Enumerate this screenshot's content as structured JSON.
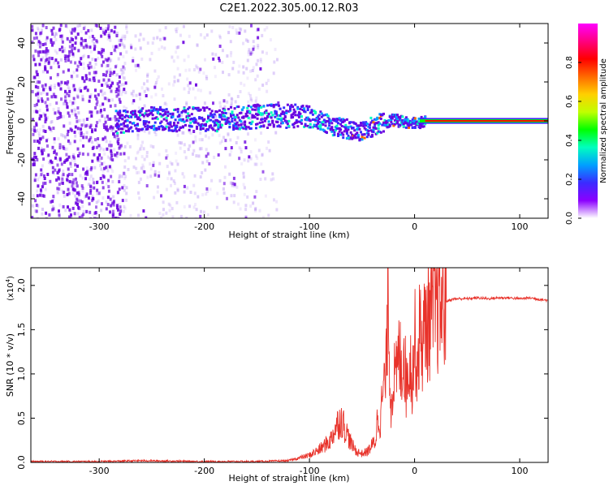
{
  "title": "C2E1.2022.305.00.12.R03",
  "top_panel": {
    "xlabel": "Height of straight line (km)",
    "ylabel": "Frequency (Hz)",
    "xticks": [
      "-300",
      "-200",
      "-100",
      "0",
      "100"
    ],
    "yticks": [
      "-40",
      "-20",
      "0",
      "20",
      "40"
    ],
    "colorbar": {
      "label": "Normalized spectral amplitude",
      "ticks": [
        "0.0",
        "0.2",
        "0.4",
        "0.6",
        "0.8"
      ],
      "colors": [
        "#ffffff",
        "#8b00ff",
        "#3b2bff",
        "#00a0ff",
        "#00ffbf",
        "#00ff00",
        "#c0ff00",
        "#ffd000",
        "#ff6a00",
        "#ff0000",
        "#ff0080",
        "#ff00ff"
      ]
    }
  },
  "bottom_panel": {
    "xlabel": "Height of straight line (km)",
    "ylabel": "SNR (10 * v/v)",
    "multiplier": "(x10",
    "multiplier_exp": "4",
    "multiplier_close": ")",
    "xticks": [
      "-300",
      "-200",
      "-100",
      "0",
      "100"
    ],
    "yticks": [
      "0.0",
      "0.5",
      "1.0",
      "1.5",
      "2.0"
    ],
    "line_color": "#e8322a"
  },
  "chart_data": [
    {
      "type": "heatmap",
      "title": "C2E1.2022.305.00.12.R03",
      "xlabel": "Height of straight line (km)",
      "ylabel": "Frequency (Hz)",
      "xlim": [
        -365,
        127
      ],
      "ylim": [
        -50,
        50
      ],
      "colorbar_label": "Normalized spectral amplitude",
      "colorbar_range": [
        0,
        1
      ],
      "ridge": {
        "x": [
          -285,
          -270,
          -250,
          -230,
          -210,
          -190,
          -170,
          -150,
          -130,
          -110,
          -100,
          -90,
          -80,
          -70,
          -60,
          -50,
          -40,
          -30,
          -20,
          -10,
          0,
          10,
          20,
          60,
          127
        ],
        "y": [
          0,
          1,
          2,
          1,
          2,
          1,
          2,
          3,
          3,
          3,
          2,
          1,
          -2,
          -3,
          -4,
          -5,
          -2,
          0,
          1,
          0,
          0,
          0,
          0,
          0,
          0
        ]
      }
    },
    {
      "type": "line",
      "xlabel": "Height of straight line (km)",
      "ylabel": "SNR (10 * v/v)",
      "xlim": [
        -365,
        127
      ],
      "ylim": [
        0,
        2.2
      ],
      "y_multiplier": 10000,
      "series": [
        {
          "x": [
            -365,
            -300,
            -260,
            -200,
            -150,
            -120,
            -110,
            -100,
            -90,
            -80,
            -75,
            -70,
            -65,
            -60,
            -55,
            -50,
            -45,
            -40,
            -37,
            -35,
            -33,
            -30,
            -27,
            -25,
            -23,
            -20,
            -18,
            -15,
            -12,
            -10,
            -8,
            -5,
            -2,
            0,
            3,
            5,
            8,
            10,
            15,
            20,
            25,
            30,
            35,
            40,
            50,
            60,
            70,
            80,
            90,
            100,
            110,
            120,
            127
          ],
          "y": [
            0.01,
            0.01,
            0.02,
            0.01,
            0.01,
            0.02,
            0.05,
            0.08,
            0.15,
            0.25,
            0.4,
            0.5,
            0.35,
            0.2,
            0.12,
            0.1,
            0.12,
            0.2,
            0.25,
            0.55,
            0.45,
            0.8,
            1.0,
            2.2,
            0.6,
            1.0,
            0.9,
            1.2,
            1.1,
            1.3,
            0.85,
            1.2,
            0.95,
            1.4,
            1.1,
            1.5,
            1.35,
            1.55,
            1.65,
            1.72,
            1.78,
            1.82,
            1.84,
            1.85,
            1.85,
            1.86,
            1.85,
            1.86,
            1.86,
            1.85,
            1.86,
            1.84,
            1.83
          ],
          "color": "#e8322a"
        }
      ]
    }
  ]
}
